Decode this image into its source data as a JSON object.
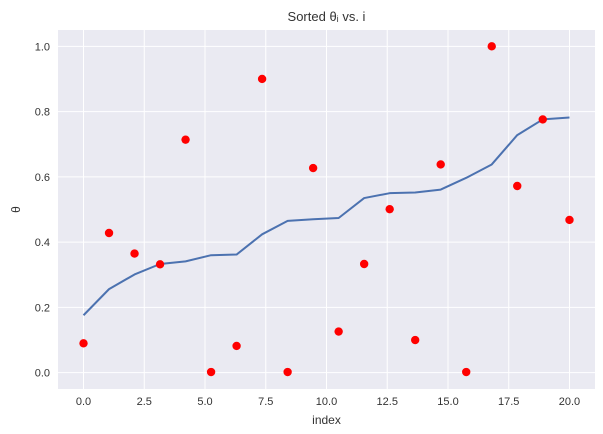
{
  "chart_data": {
    "type": "line",
    "title": "Sorted θᵢ vs. i",
    "xlabel": "index",
    "ylabel": "θ",
    "xlim": [
      -1.05,
      21.05
    ],
    "ylim": [
      -0.05,
      1.05
    ],
    "xticks": [
      0.0,
      2.5,
      5.0,
      7.5,
      10.0,
      12.5,
      15.0,
      17.5,
      20.0
    ],
    "xtick_labels": [
      "0.0",
      "2.5",
      "5.0",
      "7.5",
      "10.0",
      "12.5",
      "15.0",
      "17.5",
      "20.0"
    ],
    "yticks": [
      0.0,
      0.2,
      0.4,
      0.6,
      0.8,
      1.0
    ],
    "ytick_labels": [
      "0.0",
      "0.2",
      "0.4",
      "0.6",
      "0.8",
      "1.0"
    ],
    "grid": true,
    "background_color": "#eaeaf2",
    "series": [
      {
        "kind": "line",
        "color": "#4c72b0",
        "x": [
          0,
          1.05,
          2.1,
          3.15,
          4.2,
          5.25,
          6.3,
          7.35,
          8.4,
          9.45,
          10.5,
          11.55,
          12.6,
          13.65,
          14.7,
          15.75,
          16.8,
          17.85,
          18.9,
          20.0
        ],
        "y": [
          0.176,
          0.256,
          0.301,
          0.333,
          0.341,
          0.36,
          0.362,
          0.424,
          0.465,
          0.47,
          0.474,
          0.535,
          0.55,
          0.552,
          0.561,
          0.597,
          0.638,
          0.728,
          0.776,
          0.782
        ]
      },
      {
        "kind": "scatter",
        "color": "#ff0000",
        "x": [
          0,
          1.05,
          2.1,
          3.15,
          4.2,
          5.25,
          6.3,
          7.35,
          8.4,
          9.45,
          10.5,
          11.55,
          12.6,
          13.65,
          14.7,
          15.75,
          16.8,
          17.85,
          18.9,
          20.0
        ],
        "y": [
          0.09,
          0.428,
          0.365,
          0.332,
          0.714,
          0.002,
          0.082,
          0.9,
          0.002,
          0.627,
          0.126,
          0.333,
          0.501,
          0.1,
          0.638,
          0.002,
          1.0,
          0.572,
          0.776,
          0.468
        ]
      }
    ]
  }
}
